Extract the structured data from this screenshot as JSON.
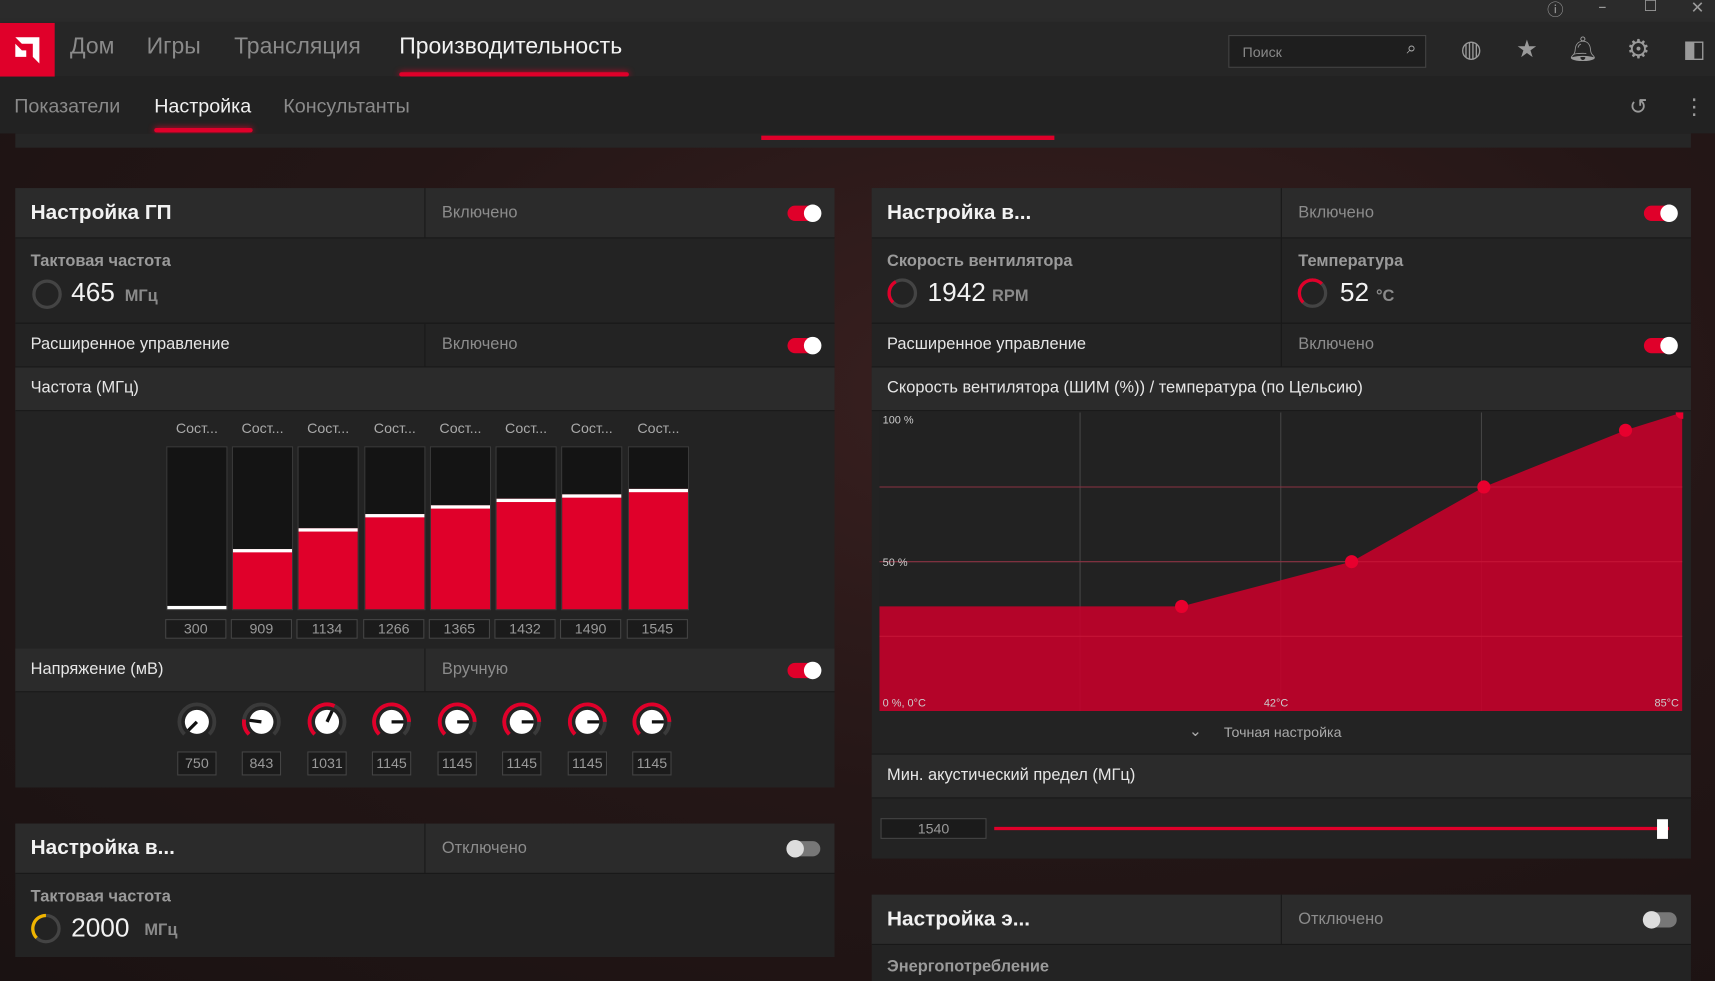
{
  "colors": {
    "accent": "#e0002a",
    "gauge_yellow": "#f0b400"
  },
  "titlebar": {
    "icons": [
      "help-icon",
      "minimize-icon",
      "maximize-icon",
      "close-icon"
    ]
  },
  "nav": {
    "items": [
      {
        "label": "Дом"
      },
      {
        "label": "Игры"
      },
      {
        "label": "Трансляция"
      },
      {
        "label": "Производительность",
        "active": true
      }
    ],
    "search_placeholder": "Поиск",
    "icons": [
      "globe-icon",
      "star-icon",
      "bell-icon",
      "gear-icon",
      "sidebar-exit-icon"
    ]
  },
  "subnav": {
    "items": [
      {
        "label": "Показатели"
      },
      {
        "label": "Настройка",
        "active": true
      },
      {
        "label": "Консультанты"
      }
    ],
    "icons": [
      "reset-icon",
      "more-icon"
    ]
  },
  "gpu": {
    "title": "Настройка ГП",
    "status": "Включено",
    "enabled": true,
    "clock_label": "Тактовая частота",
    "clock_value": "465",
    "clock_unit": "МГц",
    "advanced_label": "Расширенное управление",
    "advanced_status": "Включено",
    "freq_label": "Частота (МГц)",
    "states": [
      {
        "name": "Сост...",
        "value": "300",
        "fill": 0.02
      },
      {
        "name": "Сост...",
        "value": "909",
        "fill": 0.367
      },
      {
        "name": "Сост...",
        "value": "1134",
        "fill": 0.493
      },
      {
        "name": "Сост...",
        "value": "1266",
        "fill": 0.58
      },
      {
        "name": "Сост...",
        "value": "1365",
        "fill": 0.633
      },
      {
        "name": "Сост...",
        "value": "1432",
        "fill": 0.673
      },
      {
        "name": "Сост...",
        "value": "1490",
        "fill": 0.7
      },
      {
        "name": "Сост...",
        "value": "1545",
        "fill": 0.733
      }
    ],
    "voltage_label": "Напряжение (мВ)",
    "voltage_status": "Вручную",
    "voltages": [
      {
        "value": "750",
        "level": 0
      },
      {
        "value": "843",
        "level": 0.196
      },
      {
        "value": "1031",
        "level": 0.593
      },
      {
        "value": "1145",
        "level": 0.833
      },
      {
        "value": "1145",
        "level": 0.833
      },
      {
        "value": "1145",
        "level": 0.833
      },
      {
        "value": "1145",
        "level": 0.833
      },
      {
        "value": "1145",
        "level": 0.833
      }
    ]
  },
  "vram": {
    "title": "Настройка в...",
    "status": "Отключено",
    "enabled": false,
    "clock_label": "Тактовая частота",
    "clock_value": "2000",
    "clock_unit": "МГц"
  },
  "fan": {
    "title": "Настройка в...",
    "status": "Включено",
    "enabled": true,
    "speed_label": "Скорость вентилятора",
    "speed_value": "1942",
    "speed_unit": "RPM",
    "temp_label": "Температура",
    "temp_value": "52",
    "temp_unit": "°C",
    "advanced_label": "Расширенное управление",
    "advanced_status": "Включено",
    "fine_tune_label": "Точная настройка",
    "acoustic_label": "Мин. акустический предел (МГц)",
    "acoustic_value": "1540",
    "acoustic_level": 0.99
  },
  "chart_data": {
    "type": "area",
    "title": "Скорость вентилятора (ШИМ (%)) / температура (по Цельсию)",
    "xlim": [
      0,
      85
    ],
    "ylim": [
      0,
      100
    ],
    "grid": true,
    "tick_labels": {
      "y_top": "100 %",
      "y_mid": "50 %",
      "origin": "0 %, 0°C",
      "x_mid": "42°C",
      "x_max": "85°C"
    },
    "x": [
      32,
      50,
      64,
      79,
      85
    ],
    "y": [
      35,
      50,
      75,
      94,
      100
    ]
  },
  "power": {
    "title": "Настройка э...",
    "status": "Отключено",
    "enabled": false,
    "label": "Энергопотребление"
  }
}
